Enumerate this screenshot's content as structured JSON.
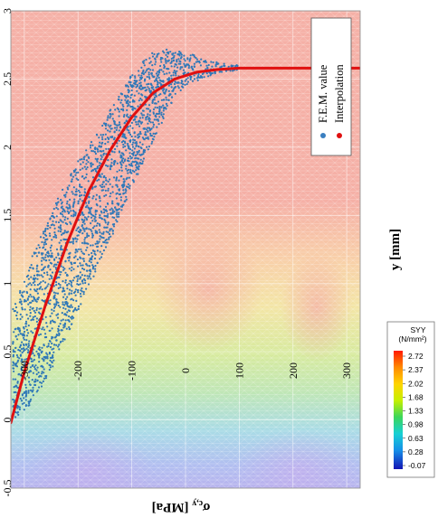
{
  "chart_data": {
    "type": "scatter",
    "orientation": "rotated-90",
    "xlabel": "σ c,y [MPa]",
    "ylabel": "y [mm]",
    "xlim": [
      -0.5,
      3
    ],
    "ylim": [
      -325,
      325
    ],
    "x_ticks": [
      "3",
      "2.5",
      "2",
      "1.5",
      "1",
      "0.5",
      "0",
      "-0.5"
    ],
    "y_ticks": [
      "-300",
      "-200",
      "-100",
      "0",
      "100",
      "200",
      "300"
    ],
    "grid": true,
    "legend": {
      "position": "top-right",
      "entries": [
        {
          "label": "F.E.M. value",
          "color": "#3a7fc0",
          "marker": "dot"
        },
        {
          "label": "Interpolation",
          "color": "#e01010",
          "marker": "dot"
        }
      ]
    },
    "series": [
      {
        "name": "F.E.M. value",
        "kind": "scatter-band",
        "color": "#2f78b8",
        "band": [
          {
            "y": -320,
            "x_min": 0.0,
            "x_max": 0.85
          },
          {
            "y": -280,
            "x_min": 0.15,
            "x_max": 1.25
          },
          {
            "y": -240,
            "x_min": 0.45,
            "x_max": 1.6
          },
          {
            "y": -200,
            "x_min": 0.8,
            "x_max": 1.9
          },
          {
            "y": -160,
            "x_min": 1.15,
            "x_max": 2.15
          },
          {
            "y": -120,
            "x_min": 1.5,
            "x_max": 2.4
          },
          {
            "y": -90,
            "x_min": 1.8,
            "x_max": 2.6
          },
          {
            "y": -60,
            "x_min": 2.05,
            "x_max": 2.7
          },
          {
            "y": -30,
            "x_min": 2.3,
            "x_max": 2.72
          },
          {
            "y": 0,
            "x_min": 2.45,
            "x_max": 2.7
          },
          {
            "y": 30,
            "x_min": 2.5,
            "x_max": 2.65
          },
          {
            "y": 60,
            "x_min": 2.55,
            "x_max": 2.62
          },
          {
            "y": 100,
            "x_min": 2.56,
            "x_max": 2.6
          }
        ]
      },
      {
        "name": "Interpolation",
        "kind": "line",
        "color": "#e01010",
        "points": [
          {
            "y": -325,
            "x": -0.02
          },
          {
            "y": -300,
            "x": 0.35
          },
          {
            "y": -260,
            "x": 0.85
          },
          {
            "y": -220,
            "x": 1.3
          },
          {
            "y": -180,
            "x": 1.68
          },
          {
            "y": -140,
            "x": 1.98
          },
          {
            "y": -100,
            "x": 2.22
          },
          {
            "y": -60,
            "x": 2.4
          },
          {
            "y": -20,
            "x": 2.5
          },
          {
            "y": 20,
            "x": 2.55
          },
          {
            "y": 60,
            "x": 2.57
          },
          {
            "y": 100,
            "x": 2.58
          },
          {
            "y": 200,
            "x": 2.58
          },
          {
            "y": 325,
            "x": 2.58
          }
        ]
      }
    ]
  },
  "colorbar": {
    "title_line1": "SYY",
    "title_line2": "(N/mm²)",
    "values": [
      "2.72",
      "2.37",
      "2.02",
      "1.68",
      "1.33",
      "0.98",
      "0.63",
      "0.28",
      "-0.07"
    ],
    "colors": [
      "#ff2a00",
      "#ff8a00",
      "#ffd000",
      "#d8f000",
      "#5ad64a",
      "#1fd0c8",
      "#15a0e8",
      "#1040d8",
      "#1818b8"
    ]
  }
}
